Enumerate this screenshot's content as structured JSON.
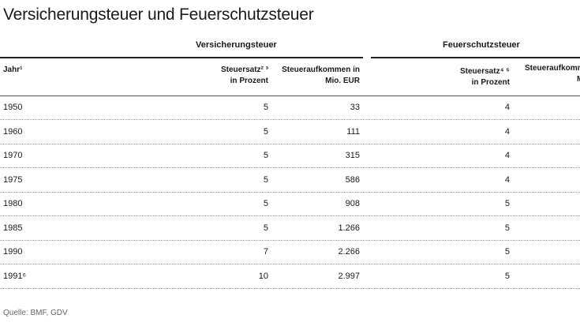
{
  "title": "Versicherungsteuer und Feuerschutzsteuer",
  "groups": {
    "versicherung": "Versicherungsteuer",
    "feuerschutz": "Feuerschutzsteuer"
  },
  "headers": {
    "jahr": "Jahr¹",
    "vst_satz_l1": "Steuersatz² ³",
    "vst_satz_l2": "in Prozent",
    "vst_aufkommen_l1": "Steueraufkommen in",
    "vst_aufkommen_l2": "Mio. EUR",
    "fst_satz_l1": "Steuersatz⁴ ⁵",
    "fst_satz_l2": "in Prozent",
    "fst_aufkommen_l1": "Steueraufkomm",
    "fst_aufkommen_l2": "Mio"
  },
  "rows": [
    {
      "jahr": "1950",
      "vst_satz": "5",
      "vst_aufkommen": "33",
      "fst_satz": "4"
    },
    {
      "jahr": "1960",
      "vst_satz": "5",
      "vst_aufkommen": "111",
      "fst_satz": "4"
    },
    {
      "jahr": "1970",
      "vst_satz": "5",
      "vst_aufkommen": "315",
      "fst_satz": "4"
    },
    {
      "jahr": "1975",
      "vst_satz": "5",
      "vst_aufkommen": "586",
      "fst_satz": "4"
    },
    {
      "jahr": "1980",
      "vst_satz": "5",
      "vst_aufkommen": "908",
      "fst_satz": "5"
    },
    {
      "jahr": "1985",
      "vst_satz": "5",
      "vst_aufkommen": "1.266",
      "fst_satz": "5"
    },
    {
      "jahr": "1990",
      "vst_satz": "7",
      "vst_aufkommen": "2.266",
      "fst_satz": "5"
    },
    {
      "jahr": "1991⁶",
      "vst_satz": "10",
      "vst_aufkommen": "2.997",
      "fst_satz": "5"
    }
  ],
  "source": "Quelle: BMF, GDV"
}
